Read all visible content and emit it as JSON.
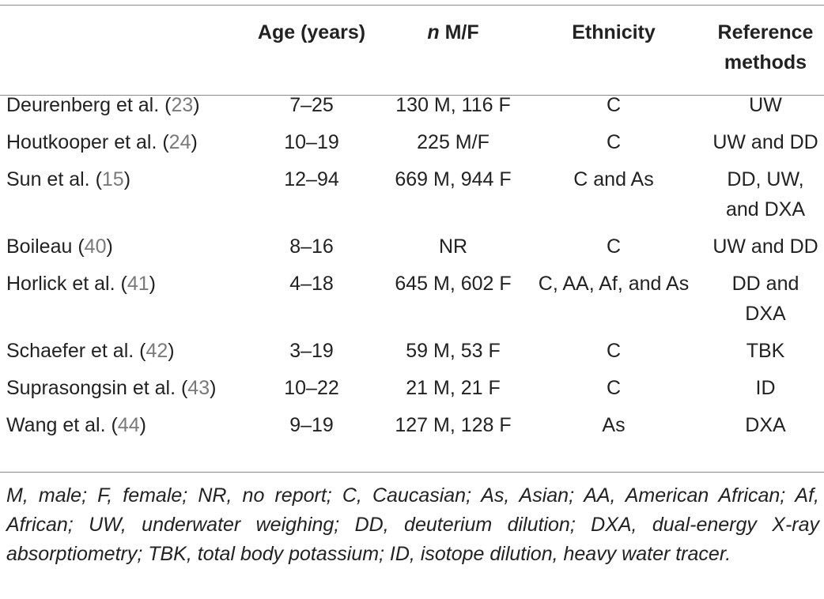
{
  "headers": {
    "study": "",
    "age": "Age (years)",
    "n_italic": "n",
    "n_rest": " M/F",
    "ethnicity": "Ethnicity",
    "reference_line1": "Reference",
    "reference_line2": "methods"
  },
  "rows": [
    {
      "author": "Deurenberg et al. (",
      "ref": "23",
      "close": ")",
      "age": "7–25",
      "n": "130 M, 116 F",
      "ethnicity": "C",
      "method1": "UW",
      "method2": ""
    },
    {
      "author": "Houtkooper et al. (",
      "ref": "24",
      "close": ")",
      "age": "10–19",
      "n": "225 M/F",
      "ethnicity": "C",
      "method1": "UW and DD",
      "method2": ""
    },
    {
      "author": "Sun et al. (",
      "ref": "15",
      "close": ")",
      "age": "12–94",
      "n": "669 M, 944 F",
      "ethnicity": "C and As",
      "method1": "DD, UW,",
      "method2": "and DXA"
    },
    {
      "author": "Boileau (",
      "ref": "40",
      "close": ")",
      "age": "8–16",
      "n": "NR",
      "ethnicity": "C",
      "method1": "UW and DD",
      "method2": ""
    },
    {
      "author": "Horlick et al. (",
      "ref": "41",
      "close": ")",
      "age": "4–18",
      "n": "645 M, 602 F",
      "ethnicity": "C, AA, Af, and As",
      "method1": "DD and",
      "method2": "DXA"
    },
    {
      "author": "Schaefer et al. (",
      "ref": "42",
      "close": ")",
      "age": "3–19",
      "n": "59 M, 53 F",
      "ethnicity": "C",
      "method1": "TBK",
      "method2": ""
    },
    {
      "author": "Suprasongsin et al. (",
      "ref": "43",
      "close": ")",
      "age": "10–22",
      "n": "21 M, 21 F",
      "ethnicity": "C",
      "method1": "ID",
      "method2": ""
    },
    {
      "author": "Wang et al. (",
      "ref": "44",
      "close": ")",
      "age": "9–19",
      "n": "127 M, 128 F",
      "ethnicity": "As",
      "method1": "DXA",
      "method2": ""
    }
  ],
  "footnote": "M, male; F, female; NR, no report; C, Caucasian; As, Asian; AA, American African; Af, African; UW, underwater weighing; DD, deuterium dilution; DXA, dual-energy X-ray absorptiometry; TBK, total body potassium; ID, isotope dilution, heavy water tracer."
}
